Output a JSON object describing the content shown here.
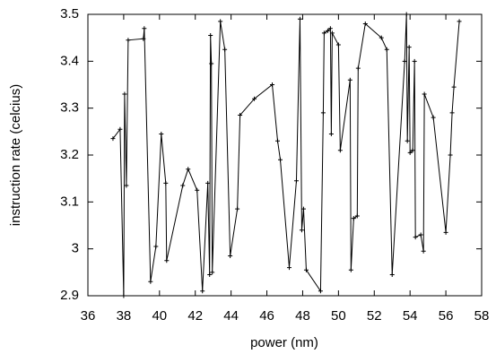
{
  "chart_data": {
    "type": "line",
    "xlabel": "power (nm)",
    "ylabel": "instruction rate (celcius)",
    "x": [
      37.4,
      37.8,
      38.0,
      38.05,
      38.15,
      38.25,
      39.1,
      39.15,
      39.5,
      39.8,
      40.1,
      40.35,
      40.4,
      41.3,
      41.6,
      42.1,
      42.4,
      42.7,
      42.8,
      42.85,
      42.9,
      42.95,
      43.4,
      43.65,
      43.95,
      44.35,
      44.5,
      45.3,
      46.3,
      46.6,
      46.75,
      47.25,
      47.65,
      47.85,
      47.95,
      48.05,
      48.2,
      49.0,
      49.15,
      49.2,
      49.4,
      49.55,
      49.6,
      49.65,
      50.0,
      50.1,
      50.65,
      50.7,
      50.85,
      51.05,
      51.1,
      51.5,
      52.4,
      52.7,
      53.0,
      53.7,
      53.8,
      53.85,
      53.95,
      54.0,
      54.15,
      54.25,
      54.3,
      54.6,
      54.75,
      54.8,
      55.3,
      56.0,
      56.25,
      56.35,
      56.45,
      56.75
    ],
    "values": [
      3.235,
      3.255,
      2.9,
      3.33,
      3.135,
      3.445,
      3.448,
      3.47,
      2.93,
      3.005,
      3.245,
      3.14,
      2.975,
      3.135,
      3.17,
      3.125,
      2.91,
      3.14,
      2.945,
      3.455,
      3.395,
      2.95,
      3.485,
      3.425,
      2.985,
      3.085,
      3.285,
      3.32,
      3.35,
      3.23,
      3.19,
      2.96,
      3.145,
      3.49,
      3.04,
      3.085,
      2.955,
      2.91,
      3.29,
      3.46,
      3.465,
      3.47,
      3.245,
      3.46,
      3.435,
      3.21,
      3.36,
      2.955,
      3.065,
      3.07,
      3.385,
      3.48,
      3.45,
      3.425,
      2.945,
      3.4,
      3.5,
      3.23,
      3.43,
      3.205,
      3.21,
      3.4,
      3.025,
      3.03,
      2.995,
      3.33,
      3.28,
      3.035,
      3.2,
      3.29,
      3.345,
      3.485
    ],
    "color": "#000000",
    "xlim": [
      36,
      58
    ],
    "xticks": [
      36,
      38,
      40,
      42,
      44,
      46,
      48,
      50,
      52,
      54,
      56,
      58
    ],
    "ylim": [
      2.9,
      3.5
    ],
    "yticks": [
      2.9,
      3,
      3.1,
      3.2,
      3.3,
      3.4,
      3.5
    ]
  }
}
